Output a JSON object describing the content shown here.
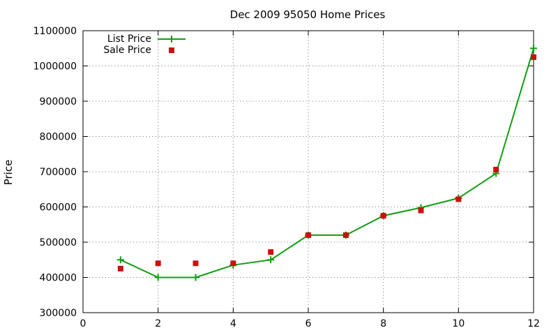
{
  "chart_data": {
    "type": "line",
    "title": "Dec 2009 95050 Home Prices",
    "xlabel": "",
    "ylabel": "Price",
    "xlim": [
      0,
      12
    ],
    "ylim": [
      300000,
      1100000
    ],
    "grid": true,
    "legend_position": "top-left",
    "x_ticks": [
      "0",
      "2",
      "4",
      "6",
      "8",
      "10",
      "12"
    ],
    "y_ticks": [
      "300000",
      "400000",
      "500000",
      "600000",
      "700000",
      "800000",
      "900000",
      "1000000",
      "1100000"
    ],
    "series": [
      {
        "name": "List Price",
        "style": "line+plus",
        "color": "#109e10",
        "x": [
          1,
          2,
          3,
          4,
          5,
          6,
          7,
          8,
          9,
          10,
          11,
          12
        ],
        "values": [
          450000,
          400000,
          400000,
          435000,
          450000,
          520000,
          520000,
          575000,
          598000,
          625000,
          695000,
          1050000
        ]
      },
      {
        "name": "Sale Price",
        "style": "square-points",
        "color": "#cc1010",
        "x": [
          1,
          2,
          3,
          4,
          5,
          6,
          7,
          8,
          9,
          10,
          11,
          12
        ],
        "values": [
          425000,
          440000,
          440000,
          440000,
          472000,
          520000,
          520000,
          575000,
          590000,
          622000,
          706000,
          1025000
        ]
      }
    ]
  }
}
